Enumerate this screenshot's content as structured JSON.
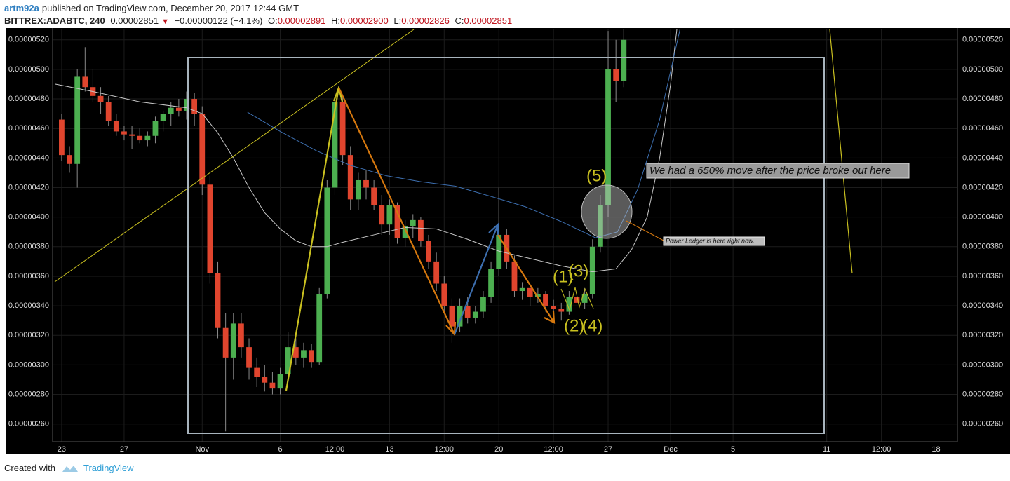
{
  "header": {
    "author": "artm92a",
    "published": "published on TradingView.com, December 20, 2017 12:44 GMT",
    "symbol": "BITTREX:ADABTC, 240",
    "last": "0.00002851",
    "change": "−0.00000122 (−4.1%)",
    "o_label": "O:",
    "o": "0.00002891",
    "h_label": "H:",
    "h": "0.00002900",
    "l_label": "L:",
    "l": "0.00002826",
    "c_label": "C:",
    "c": "0.00002851"
  },
  "footer": {
    "created": "Created with",
    "brand": "TradingView"
  },
  "chart_data": {
    "type": "candlestick",
    "up_color": "#4caf50",
    "down_color": "#e0452e",
    "grid": true,
    "xlim": [
      -0.58,
      57.37
    ],
    "ylim": [
      2.48e-06,
      5.27e-06
    ],
    "xticks": [
      {
        "value": 0,
        "label": "23"
      },
      {
        "value": 4,
        "label": "27"
      },
      {
        "value": 9,
        "label": "Nov"
      },
      {
        "value": 14,
        "label": "6"
      },
      {
        "value": 17.5,
        "label": "12:00"
      },
      {
        "value": 21,
        "label": "13"
      },
      {
        "value": 24.5,
        "label": "12:00"
      },
      {
        "value": 28,
        "label": "20"
      },
      {
        "value": 31.5,
        "label": "12:00"
      },
      {
        "value": 35,
        "label": "27"
      },
      {
        "value": 39,
        "label": "Dec"
      },
      {
        "value": 43,
        "label": "5"
      },
      {
        "value": 49,
        "label": "11"
      },
      {
        "value": 52.5,
        "label": "12:00"
      },
      {
        "value": 56,
        "label": "18"
      }
    ],
    "yticks": [
      {
        "value": 2.6e-06,
        "label": "0.00000260"
      },
      {
        "value": 2.8e-06,
        "label": "0.00000280"
      },
      {
        "value": 3e-06,
        "label": "0.00000300"
      },
      {
        "value": 3.2e-06,
        "label": "0.00000320"
      },
      {
        "value": 3.4e-06,
        "label": "0.00000340"
      },
      {
        "value": 3.6e-06,
        "label": "0.00000360"
      },
      {
        "value": 3.8e-06,
        "label": "0.00000380"
      },
      {
        "value": 4e-06,
        "label": "0.00000400"
      },
      {
        "value": 4.2e-06,
        "label": "0.00000420"
      },
      {
        "value": 4.4e-06,
        "label": "0.00000440"
      },
      {
        "value": 4.6e-06,
        "label": "0.00000460"
      },
      {
        "value": 4.8e-06,
        "label": "0.00000480"
      },
      {
        "value": 5e-06,
        "label": "0.00000500"
      },
      {
        "value": 5.2e-06,
        "label": "0.00000520"
      }
    ],
    "x": [
      0,
      0.5,
      1,
      1.5,
      2,
      2.5,
      3,
      3.5,
      4,
      4.5,
      5,
      5.5,
      6,
      6.5,
      7,
      7.5,
      8,
      8.5,
      9,
      9.5,
      10,
      10.5,
      11,
      11.5,
      12,
      12.5,
      13,
      13.5,
      14,
      14.5,
      15,
      15.5,
      16,
      16.5,
      17,
      17.5,
      18,
      18.5,
      19,
      19.5,
      20,
      20.5,
      21,
      21.5,
      22,
      22.5,
      23,
      23.5,
      24,
      24.5,
      25,
      25.5,
      26,
      26.5,
      27,
      27.5,
      28,
      28.5,
      29,
      29.5,
      30,
      30.5,
      31,
      31.5,
      32,
      32.5,
      33,
      33.5,
      34,
      34.5,
      35,
      35.5,
      36
    ],
    "open": [
      4.66e-06,
      4.42e-06,
      4.36e-06,
      4.95e-06,
      4.88e-06,
      4.82e-06,
      4.78e-06,
      4.65e-06,
      4.58e-06,
      4.56e-06,
      4.55e-06,
      4.52e-06,
      4.55e-06,
      4.65e-06,
      4.7e-06,
      4.74e-06,
      4.72e-06,
      4.8e-06,
      4.7e-06,
      4.22e-06,
      3.62e-06,
      3.25e-06,
      3.05e-06,
      3.28e-06,
      3.12e-06,
      2.98e-06,
      2.92e-06,
      2.88e-06,
      2.84e-06,
      2.94e-06,
      3.12e-06,
      3.05e-06,
      3.1e-06,
      3.02e-06,
      3.48e-06,
      4.2e-06,
      4.78e-06,
      4.42e-06,
      4.12e-06,
      4.25e-06,
      4.2e-06,
      4.08e-06,
      3.95e-06,
      4.08e-06,
      3.86e-06,
      3.94e-06,
      3.98e-06,
      3.84e-06,
      3.7e-06,
      3.55e-06,
      3.4e-06,
      3.26e-06,
      3.4e-06,
      3.32e-06,
      3.36e-06,
      3.46e-06,
      3.65e-06,
      3.88e-06,
      3.7e-06,
      3.5e-06,
      3.52e-06,
      3.46e-06,
      3.48e-06,
      3.4e-06,
      3.38e-06,
      3.36e-06,
      3.46e-06,
      3.42e-06,
      3.48e-06,
      3.8e-06,
      4.08e-06,
      5e-06,
      4.92e-06
    ],
    "high": [
      4.7e-06,
      4.48e-06,
      5e-06,
      5.15e-06,
      5e-06,
      4.88e-06,
      4.82e-06,
      4.7e-06,
      4.62e-06,
      4.62e-06,
      4.6e-06,
      4.58e-06,
      4.68e-06,
      4.72e-06,
      4.78e-06,
      4.8e-06,
      4.85e-06,
      4.84e-06,
      4.75e-06,
      4.28e-06,
      3.7e-06,
      3.35e-06,
      3.35e-06,
      3.35e-06,
      3.18e-06,
      3.05e-06,
      3e-06,
      2.95e-06,
      2.98e-06,
      3.22e-06,
      3.18e-06,
      3.15e-06,
      3.14e-06,
      3.52e-06,
      4.25e-06,
      4.9e-06,
      4.82e-06,
      4.48e-06,
      4.3e-06,
      4.32e-06,
      4.25e-06,
      4.15e-06,
      4.12e-06,
      4.1e-06,
      3.98e-06,
      4.02e-06,
      4e-06,
      3.88e-06,
      3.76e-06,
      3.6e-06,
      3.45e-06,
      3.45e-06,
      3.46e-06,
      3.4e-06,
      3.5e-06,
      3.7e-06,
      4.2e-06,
      3.92e-06,
      3.74e-06,
      3.56e-06,
      3.54e-06,
      3.52e-06,
      3.5e-06,
      3.44e-06,
      3.42e-06,
      3.5e-06,
      3.5e-06,
      3.52e-06,
      3.85e-06,
      4.15e-06,
      5.26e-06,
      5.2e-06,
      5.27e-06
    ],
    "low": [
      4.38e-06,
      4.3e-06,
      4.2e-06,
      4.85e-06,
      4.78e-06,
      4.7e-06,
      4.62e-06,
      4.55e-06,
      4.52e-06,
      4.46e-06,
      4.5e-06,
      4.48e-06,
      4.5e-06,
      4.58e-06,
      4.62e-06,
      4.68e-06,
      4.66e-06,
      4.62e-06,
      4.15e-06,
      3.55e-06,
      3.18e-06,
      2.55e-06,
      2.9e-06,
      3.05e-06,
      2.9e-06,
      2.85e-06,
      2.82e-06,
      2.8e-06,
      2.8e-06,
      2.9e-06,
      3e-06,
      2.98e-06,
      2.98e-06,
      3e-06,
      3.45e-06,
      4.15e-06,
      4.35e-06,
      4.05e-06,
      4.05e-06,
      4.12e-06,
      4.05e-06,
      3.88e-06,
      3.88e-06,
      3.82e-06,
      3.8e-06,
      3.86e-06,
      3.8e-06,
      3.65e-06,
      3.5e-06,
      3.36e-06,
      3.15e-06,
      3.22e-06,
      3.28e-06,
      3.28e-06,
      3.32e-06,
      3.42e-06,
      3.6e-06,
      3.65e-06,
      3.46e-06,
      3.44e-06,
      3.4e-06,
      3.42e-06,
      3.36e-06,
      3.32e-06,
      3.3e-06,
      3.34e-06,
      3.38e-06,
      3.38e-06,
      3.45e-06,
      3.76e-06,
      4e-06,
      4.78e-06,
      4.88e-06
    ],
    "close": [
      4.42e-06,
      4.36e-06,
      4.95e-06,
      4.88e-06,
      4.82e-06,
      4.78e-06,
      4.65e-06,
      4.58e-06,
      4.56e-06,
      4.55e-06,
      4.52e-06,
      4.55e-06,
      4.65e-06,
      4.7e-06,
      4.74e-06,
      4.72e-06,
      4.8e-06,
      4.7e-06,
      4.22e-06,
      3.62e-06,
      3.25e-06,
      3.05e-06,
      3.28e-06,
      3.12e-06,
      2.98e-06,
      2.92e-06,
      2.88e-06,
      2.84e-06,
      2.94e-06,
      3.12e-06,
      3.05e-06,
      3.1e-06,
      3.02e-06,
      3.48e-06,
      4.2e-06,
      4.78e-06,
      4.42e-06,
      4.12e-06,
      4.25e-06,
      4.2e-06,
      4.08e-06,
      3.95e-06,
      4.08e-06,
      3.86e-06,
      3.94e-06,
      3.98e-06,
      3.84e-06,
      3.7e-06,
      3.55e-06,
      3.4e-06,
      3.26e-06,
      3.4e-06,
      3.32e-06,
      3.36e-06,
      3.46e-06,
      3.65e-06,
      3.88e-06,
      3.7e-06,
      3.5e-06,
      3.52e-06,
      3.46e-06,
      3.48e-06,
      3.4e-06,
      3.38e-06,
      3.36e-06,
      3.46e-06,
      3.42e-06,
      3.48e-06,
      3.8e-06,
      4.08e-06,
      5e-06,
      4.92e-06,
      5.2e-06
    ],
    "lines": [
      {
        "color": "#c8c8c8",
        "x": [
          -0.4,
          2,
          5,
          8,
          9,
          10,
          11,
          12,
          13,
          14,
          15,
          16,
          17,
          18,
          20,
          22,
          24,
          26,
          28,
          30,
          32,
          34,
          35.5,
          36.5,
          37.5,
          38.3,
          39,
          39.4
        ],
        "values": [
          4.9e-06,
          4.85e-06,
          4.78e-06,
          4.74e-06,
          4.7e-06,
          4.57e-06,
          4.4e-06,
          4.2e-06,
          4.03e-06,
          3.92e-06,
          3.84e-06,
          3.8e-06,
          3.8e-06,
          3.83e-06,
          3.88e-06,
          3.93e-06,
          3.92e-06,
          3.85e-06,
          3.77e-06,
          3.72e-06,
          3.67e-06,
          3.63e-06,
          3.65e-06,
          3.78e-06,
          4e-06,
          4.4e-06,
          4.9e-06,
          5.27e-06
        ]
      },
      {
        "color": "#3d6fb0",
        "x": [
          11.9,
          14,
          16.3,
          18.5,
          20.8,
          23,
          25.2,
          27.5,
          29.7,
          32,
          34.2,
          35.6,
          36.9,
          38.3,
          39.6
        ],
        "values": [
          4.71e-06,
          4.58e-06,
          4.45e-06,
          4.35e-06,
          4.28e-06,
          4.24e-06,
          4.21e-06,
          4.14e-06,
          4.07e-06,
          3.97e-06,
          3.86e-06,
          3.9e-06,
          4.19e-06,
          4.66e-06,
          5.27e-06
        ]
      }
    ],
    "annotations": {
      "wave5": "(5)",
      "wave1": "(1)",
      "wave3": "(3)",
      "wave2": "(2)",
      "wave4": "(4)",
      "note": "We had a 650% move after the price broke out here",
      "note2": "Power Ledger is here right now."
    }
  }
}
